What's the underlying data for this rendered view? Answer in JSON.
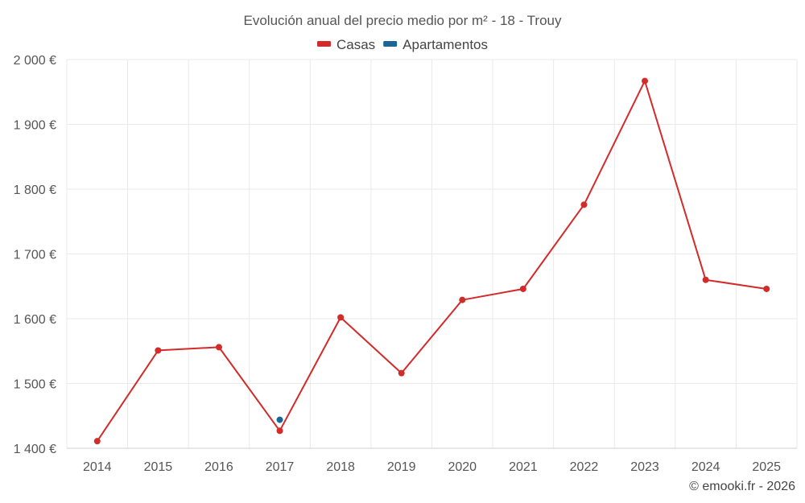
{
  "chart_data": {
    "type": "line",
    "title": "Evolución anual del precio medio por m² - 18 - Trouy",
    "categories": [
      "2014",
      "2015",
      "2016",
      "2017",
      "2018",
      "2019",
      "2020",
      "2021",
      "2022",
      "2023",
      "2024",
      "2025"
    ],
    "series": [
      {
        "name": "Casas",
        "color": "#d32a2a",
        "values": [
          1411,
          1551,
          1556,
          1427,
          1602,
          1516,
          1629,
          1646,
          1776,
          1967,
          1660,
          1646
        ]
      },
      {
        "name": "Apartamentos",
        "color": "#1a6496",
        "values": [
          null,
          null,
          null,
          1444,
          null,
          null,
          null,
          null,
          null,
          null,
          null,
          null
        ]
      }
    ],
    "ylim": [
      1400,
      2000
    ],
    "yticks": [
      1400,
      1500,
      1600,
      1700,
      1800,
      1900,
      2000
    ],
    "ytick_labels": [
      "1 400 €",
      "1 500 €",
      "1 600 €",
      "1 700 €",
      "1 800 €",
      "1 900 €",
      "2 000 €"
    ],
    "xlabel": "",
    "ylabel": "",
    "grid": true,
    "legend_position": "top-center"
  },
  "credit": "© emooki.fr - 2026"
}
